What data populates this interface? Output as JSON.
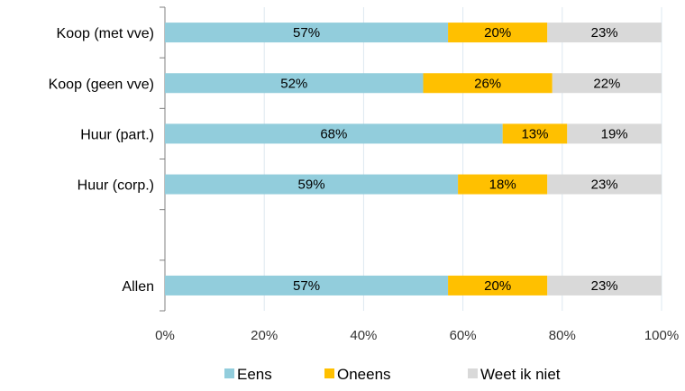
{
  "chart_data": {
    "type": "bar",
    "orientation": "horizontal",
    "stacked": true,
    "title": "",
    "xlabel": "",
    "ylabel": "",
    "xlim": [
      0,
      100
    ],
    "x_ticks": [
      "0%",
      "20%",
      "40%",
      "60%",
      "80%",
      "100%"
    ],
    "grid": "vertical",
    "legend": "bottom",
    "categories": [
      "Koop (met vve)",
      "Koop (geen vve)",
      "Huur (part.)",
      "Huur (corp.)",
      "",
      "Allen"
    ],
    "series": [
      {
        "name": "Eens",
        "color": "#92CDDC",
        "values": [
          57,
          52,
          68,
          59,
          null,
          57
        ]
      },
      {
        "name": "Oneens",
        "color": "#FFC000",
        "values": [
          20,
          26,
          13,
          18,
          null,
          20
        ]
      },
      {
        "name": "Weet ik niet",
        "color": "#D9D9D9",
        "values": [
          23,
          22,
          19,
          23,
          null,
          23
        ]
      }
    ]
  }
}
